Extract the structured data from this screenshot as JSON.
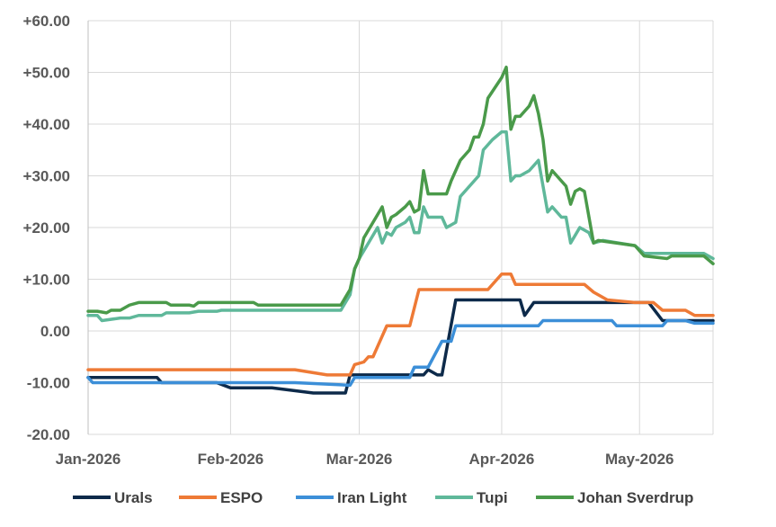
{
  "chart_data": {
    "type": "line",
    "title": "",
    "xlabel": "",
    "ylabel": "",
    "ylim": [
      -20,
      60
    ],
    "yticks": [
      "+60.00",
      "+50.00",
      "+40.00",
      "+30.00",
      "+20.00",
      "+10.00",
      "0.00",
      "-10.00",
      "-20.00"
    ],
    "ytick_values": [
      60,
      50,
      40,
      30,
      20,
      10,
      0,
      -10,
      -20
    ],
    "xlim": [
      "2026-01-01",
      "2026-05-17"
    ],
    "xticks": [
      "Jan-2026",
      "Feb-2026",
      "Mar-2026",
      "Apr-2026",
      "May-2026"
    ],
    "xtick_dates": [
      "2026-01-01",
      "2026-02-01",
      "2026-03-01",
      "2026-04-01",
      "2026-05-01"
    ],
    "grid": "both",
    "legend_position": "bottom",
    "series": [
      {
        "name": "Urals",
        "color": "#0d2a4a",
        "points": [
          [
            "2026-01-01",
            -9
          ],
          [
            "2026-01-16",
            -9
          ],
          [
            "2026-01-17",
            -10
          ],
          [
            "2026-01-29",
            -10
          ],
          [
            "2026-02-01",
            -11
          ],
          [
            "2026-02-10",
            -11
          ],
          [
            "2026-02-19",
            -12
          ],
          [
            "2026-02-26",
            -12
          ],
          [
            "2026-02-27",
            -8.5
          ],
          [
            "2026-03-15",
            -8.5
          ],
          [
            "2026-03-16",
            -7.5
          ],
          [
            "2026-03-18",
            -8.5
          ],
          [
            "2026-03-19",
            -8.5
          ],
          [
            "2026-03-22",
            6
          ],
          [
            "2026-04-05",
            6
          ],
          [
            "2026-04-06",
            3
          ],
          [
            "2026-04-08",
            5.5
          ],
          [
            "2026-04-29",
            5.5
          ],
          [
            "2026-05-03",
            5.5
          ],
          [
            "2026-05-06",
            2
          ],
          [
            "2026-05-17",
            2
          ]
        ]
      },
      {
        "name": "ESPO",
        "color": "#ee7a36",
        "points": [
          [
            "2026-01-01",
            -7.5
          ],
          [
            "2026-01-15",
            -7.5
          ],
          [
            "2026-02-07",
            -7.5
          ],
          [
            "2026-02-15",
            -7.5
          ],
          [
            "2026-02-22",
            -8.5
          ],
          [
            "2026-02-27",
            -8.5
          ],
          [
            "2026-02-28",
            -6.5
          ],
          [
            "2026-03-02",
            -6
          ],
          [
            "2026-03-03",
            -5
          ],
          [
            "2026-03-04",
            -5
          ],
          [
            "2026-03-07",
            1
          ],
          [
            "2026-03-12",
            1
          ],
          [
            "2026-03-14",
            8
          ],
          [
            "2026-03-29",
            8
          ],
          [
            "2026-04-01",
            11
          ],
          [
            "2026-04-03",
            11
          ],
          [
            "2026-04-04",
            9
          ],
          [
            "2026-04-19",
            9
          ],
          [
            "2026-04-21",
            7.5
          ],
          [
            "2026-04-22",
            7
          ],
          [
            "2026-04-24",
            6
          ],
          [
            "2026-04-30",
            5.5
          ],
          [
            "2026-05-04",
            5.5
          ],
          [
            "2026-05-06",
            4
          ],
          [
            "2026-05-11",
            4
          ],
          [
            "2026-05-13",
            3
          ],
          [
            "2026-05-17",
            3
          ]
        ]
      },
      {
        "name": "Iran Light",
        "color": "#3c8fd8",
        "points": [
          [
            "2026-01-01",
            -9
          ],
          [
            "2026-01-02",
            -10
          ],
          [
            "2026-02-15",
            -10
          ],
          [
            "2026-02-27",
            -10.5
          ],
          [
            "2026-02-28",
            -9
          ],
          [
            "2026-03-12",
            -9
          ],
          [
            "2026-03-13",
            -7
          ],
          [
            "2026-03-16",
            -7
          ],
          [
            "2026-03-19",
            -2
          ],
          [
            "2026-03-21",
            -2
          ],
          [
            "2026-03-22",
            1
          ],
          [
            "2026-04-09",
            1
          ],
          [
            "2026-04-10",
            2
          ],
          [
            "2026-04-25",
            2
          ],
          [
            "2026-04-26",
            1
          ],
          [
            "2026-05-06",
            1
          ],
          [
            "2026-05-07",
            2
          ],
          [
            "2026-05-11",
            2
          ],
          [
            "2026-05-13",
            1.5
          ],
          [
            "2026-05-17",
            1.5
          ]
        ]
      },
      {
        "name": "Tupi",
        "color": "#5fb89a",
        "points": [
          [
            "2026-01-01",
            3
          ],
          [
            "2026-01-03",
            3
          ],
          [
            "2026-01-04",
            2
          ],
          [
            "2026-01-08",
            2.5
          ],
          [
            "2026-01-10",
            2.5
          ],
          [
            "2026-01-12",
            3
          ],
          [
            "2026-01-17",
            3
          ],
          [
            "2026-01-18",
            3.5
          ],
          [
            "2026-01-23",
            3.5
          ],
          [
            "2026-01-25",
            3.8
          ],
          [
            "2026-01-29",
            3.8
          ],
          [
            "2026-01-30",
            4
          ],
          [
            "2026-02-06",
            4
          ],
          [
            "2026-02-20",
            4
          ],
          [
            "2026-02-25",
            4
          ],
          [
            "2026-02-27",
            7
          ],
          [
            "2026-02-28",
            12
          ],
          [
            "2026-03-01",
            14
          ],
          [
            "2026-03-03",
            17
          ],
          [
            "2026-03-05",
            20
          ],
          [
            "2026-03-06",
            17
          ],
          [
            "2026-03-07",
            19
          ],
          [
            "2026-03-08",
            18.5
          ],
          [
            "2026-03-09",
            20
          ],
          [
            "2026-03-11",
            21
          ],
          [
            "2026-03-12",
            22
          ],
          [
            "2026-03-13",
            19
          ],
          [
            "2026-03-14",
            19
          ],
          [
            "2026-03-15",
            24
          ],
          [
            "2026-03-16",
            22
          ],
          [
            "2026-03-19",
            22
          ],
          [
            "2026-03-20",
            20
          ],
          [
            "2026-03-22",
            21
          ],
          [
            "2026-03-23",
            26
          ],
          [
            "2026-03-25",
            28
          ],
          [
            "2026-03-26",
            29
          ],
          [
            "2026-03-27",
            30
          ],
          [
            "2026-03-28",
            35
          ],
          [
            "2026-03-30",
            37
          ],
          [
            "2026-04-01",
            38.5
          ],
          [
            "2026-04-02",
            38.5
          ],
          [
            "2026-04-03",
            29
          ],
          [
            "2026-04-04",
            30
          ],
          [
            "2026-04-05",
            30
          ],
          [
            "2026-04-07",
            31
          ],
          [
            "2026-04-08",
            32
          ],
          [
            "2026-04-09",
            33
          ],
          [
            "2026-04-10",
            28
          ],
          [
            "2026-04-11",
            23
          ],
          [
            "2026-04-12",
            24
          ],
          [
            "2026-04-14",
            22
          ],
          [
            "2026-04-15",
            22
          ],
          [
            "2026-04-16",
            17
          ],
          [
            "2026-04-18",
            20
          ],
          [
            "2026-04-20",
            19
          ],
          [
            "2026-04-21",
            17
          ],
          [
            "2026-04-23",
            17.5
          ],
          [
            "2026-04-30",
            16.5
          ],
          [
            "2026-05-02",
            15
          ],
          [
            "2026-05-07",
            15
          ],
          [
            "2026-05-08",
            15
          ],
          [
            "2026-05-15",
            15
          ],
          [
            "2026-05-17",
            14
          ]
        ]
      },
      {
        "name": "Johan Sverdrup",
        "color": "#4a9a4a",
        "points": [
          [
            "2026-01-01",
            3.8
          ],
          [
            "2026-01-03",
            3.8
          ],
          [
            "2026-01-05",
            3.5
          ],
          [
            "2026-01-06",
            4
          ],
          [
            "2026-01-08",
            4
          ],
          [
            "2026-01-10",
            5
          ],
          [
            "2026-01-12",
            5.5
          ],
          [
            "2026-01-18",
            5.5
          ],
          [
            "2026-01-19",
            5
          ],
          [
            "2026-01-23",
            5
          ],
          [
            "2026-01-24",
            4.8
          ],
          [
            "2026-01-25",
            5.5
          ],
          [
            "2026-02-03",
            5.5
          ],
          [
            "2026-02-06",
            5.5
          ],
          [
            "2026-02-07",
            5
          ],
          [
            "2026-02-20",
            5
          ],
          [
            "2026-02-25",
            5
          ],
          [
            "2026-02-27",
            8
          ],
          [
            "2026-02-28",
            12
          ],
          [
            "2026-03-01",
            14
          ],
          [
            "2026-03-02",
            18
          ],
          [
            "2026-03-04",
            21
          ],
          [
            "2026-03-06",
            24
          ],
          [
            "2026-03-07",
            20
          ],
          [
            "2026-03-08",
            22
          ],
          [
            "2026-03-09",
            22.5
          ],
          [
            "2026-03-11",
            24
          ],
          [
            "2026-03-12",
            25
          ],
          [
            "2026-03-13",
            23
          ],
          [
            "2026-03-14",
            23.5
          ],
          [
            "2026-03-15",
            31
          ],
          [
            "2026-03-16",
            26.5
          ],
          [
            "2026-03-20",
            26.5
          ],
          [
            "2026-03-21",
            29
          ],
          [
            "2026-03-23",
            33
          ],
          [
            "2026-03-25",
            35
          ],
          [
            "2026-03-26",
            37.5
          ],
          [
            "2026-03-27",
            37.5
          ],
          [
            "2026-03-28",
            40
          ],
          [
            "2026-03-29",
            45
          ],
          [
            "2026-04-01",
            49
          ],
          [
            "2026-04-02",
            51
          ],
          [
            "2026-04-03",
            39
          ],
          [
            "2026-04-04",
            41.5
          ],
          [
            "2026-04-05",
            41.5
          ],
          [
            "2026-04-07",
            43.5
          ],
          [
            "2026-04-08",
            45.5
          ],
          [
            "2026-04-09",
            42
          ],
          [
            "2026-04-10",
            37
          ],
          [
            "2026-04-11",
            29
          ],
          [
            "2026-04-12",
            31
          ],
          [
            "2026-04-15",
            28
          ],
          [
            "2026-04-16",
            24.5
          ],
          [
            "2026-04-17",
            27
          ],
          [
            "2026-04-18",
            27.5
          ],
          [
            "2026-04-19",
            27
          ],
          [
            "2026-04-21",
            17
          ],
          [
            "2026-04-22",
            17.5
          ],
          [
            "2026-04-30",
            16.5
          ],
          [
            "2026-05-02",
            14.5
          ],
          [
            "2026-05-07",
            14
          ],
          [
            "2026-05-08",
            14.5
          ],
          [
            "2026-05-15",
            14.5
          ],
          [
            "2026-05-17",
            13
          ]
        ]
      }
    ]
  }
}
